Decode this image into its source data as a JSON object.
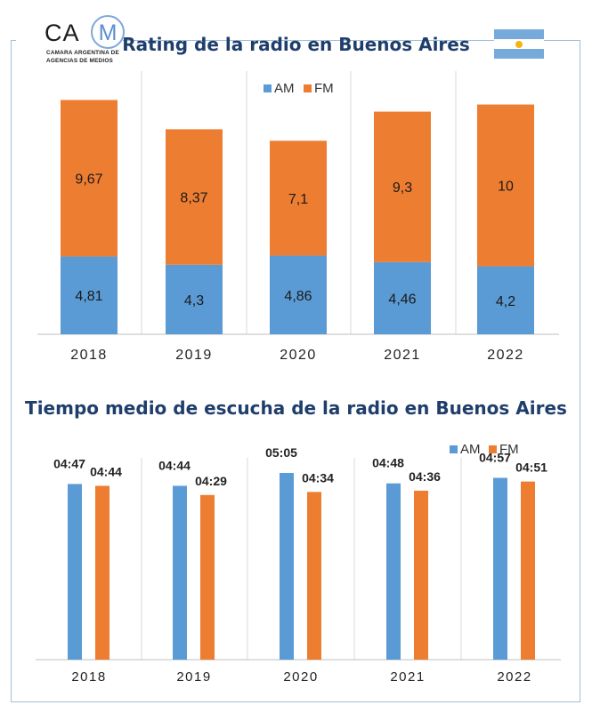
{
  "logo": {
    "letters": "CA",
    "mark": "M",
    "line1": "CAMARA ARGENTINA DE",
    "line2": "AGENCIAS DE MEDIOS"
  },
  "flag_icon": "argentina-flag-icon",
  "colors": {
    "am": "#5b9bd5",
    "fm": "#ed7d31",
    "title": "#1f3e6c",
    "frame": "#9fbfd8"
  },
  "chart_data": [
    {
      "type": "bar",
      "stacked": true,
      "title": "Rating de la radio en Buenos Aires",
      "categories": [
        "2018",
        "2019",
        "2020",
        "2021",
        "2022"
      ],
      "series": [
        {
          "name": "AM",
          "values": [
            4.81,
            4.3,
            4.86,
            4.46,
            4.2
          ],
          "labels": [
            "4,81",
            "4,3",
            "4,86",
            "4,46",
            "4,2"
          ]
        },
        {
          "name": "FM",
          "values": [
            9.67,
            8.37,
            7.1,
            9.3,
            10
          ],
          "labels": [
            "9,67",
            "8,37",
            "7,1",
            "9,3",
            "10"
          ]
        }
      ],
      "legend": "top-center",
      "grid": "vertical separators"
    },
    {
      "type": "bar",
      "stacked": false,
      "title": "Tiempo medio de escucha de la radio en Buenos Aires",
      "categories": [
        "2018",
        "2019",
        "2020",
        "2021",
        "2022"
      ],
      "series": [
        {
          "name": "AM",
          "values": [
            "04:47",
            "04:44",
            "05:05",
            "04:48",
            "04:57"
          ]
        },
        {
          "name": "FM",
          "values": [
            "04:44",
            "04:29",
            "04:34",
            "04:36",
            "04:51"
          ]
        }
      ],
      "legend": "top-right",
      "grid": "vertical separators"
    }
  ]
}
